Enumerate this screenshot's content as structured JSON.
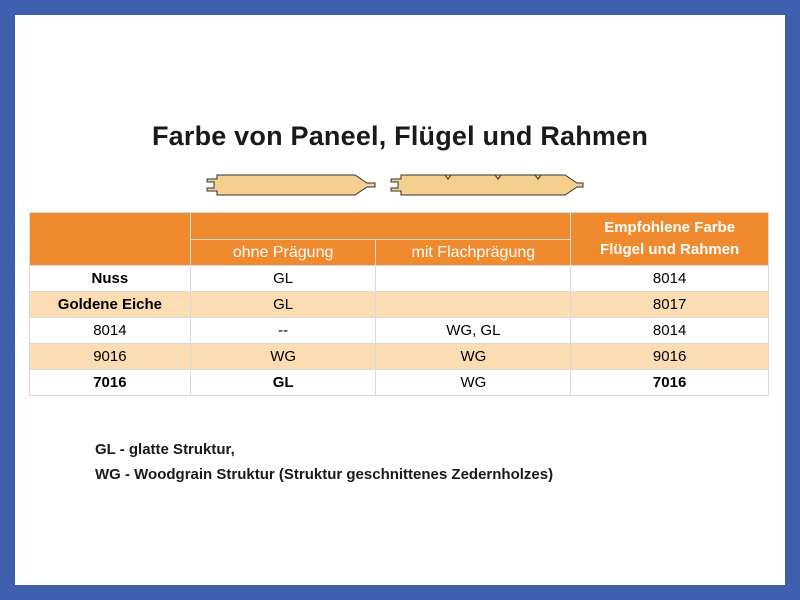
{
  "title": "Farbe von Paneel, Flügel und Rahmen",
  "table": {
    "header": {
      "col_ohne": "ohne Prägung",
      "col_mit": "mit Flachprägung",
      "col_empf_line1": "Empfohlene Farbe",
      "col_empf_line2": "Flügel und Rahmen"
    },
    "rows": [
      {
        "name": "Nuss",
        "ohne": "GL",
        "mit": "",
        "empf": "8014"
      },
      {
        "name": "Goldene Eiche",
        "ohne": "GL",
        "mit": "",
        "empf": "8017"
      },
      {
        "name": "8014",
        "ohne": "--",
        "mit": "WG, GL",
        "empf": "8014"
      },
      {
        "name": "9016",
        "ohne": "WG",
        "mit": "WG",
        "empf": "9016"
      },
      {
        "name": "7016",
        "ohne": "GL",
        "mit": "WG",
        "empf": "7016"
      }
    ]
  },
  "legend": {
    "gl": "GL - glatte Struktur,",
    "wg": "WG - Woodgrain Struktur (Struktur geschnittenes Zedernholzes)"
  },
  "colors": {
    "frame": "#3f5fae",
    "header_orange": "#f08a2e",
    "row_tan": "#fcdcb2",
    "panel_wood": "#f5cf8e"
  }
}
